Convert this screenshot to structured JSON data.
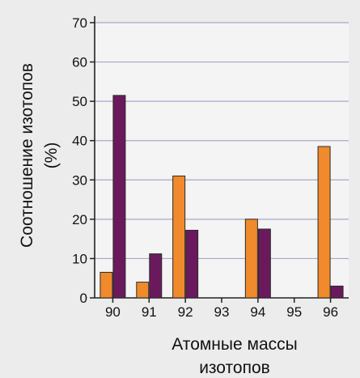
{
  "chart_data": {
    "type": "bar",
    "title": "",
    "ylabel_lines": [
      "Соотношение изотопов",
      "(%)"
    ],
    "xlabel_lines": [
      "Атомные массы",
      "изотопов"
    ],
    "categories": [
      "90",
      "91",
      "92",
      "93",
      "94",
      "95",
      "96"
    ],
    "ylim": [
      0,
      70
    ],
    "yticks": [
      "0",
      "10",
      "20",
      "30",
      "40",
      "50",
      "60",
      "70"
    ],
    "grid": true,
    "legend": "none",
    "series": [
      {
        "color": "#f08a2c",
        "values": [
          6.5,
          4,
          31,
          0,
          20,
          0,
          38.5
        ]
      },
      {
        "color": "#6a1a5c",
        "values": [
          51.5,
          11.2,
          17.2,
          0,
          17.5,
          0,
          3
        ]
      }
    ]
  }
}
